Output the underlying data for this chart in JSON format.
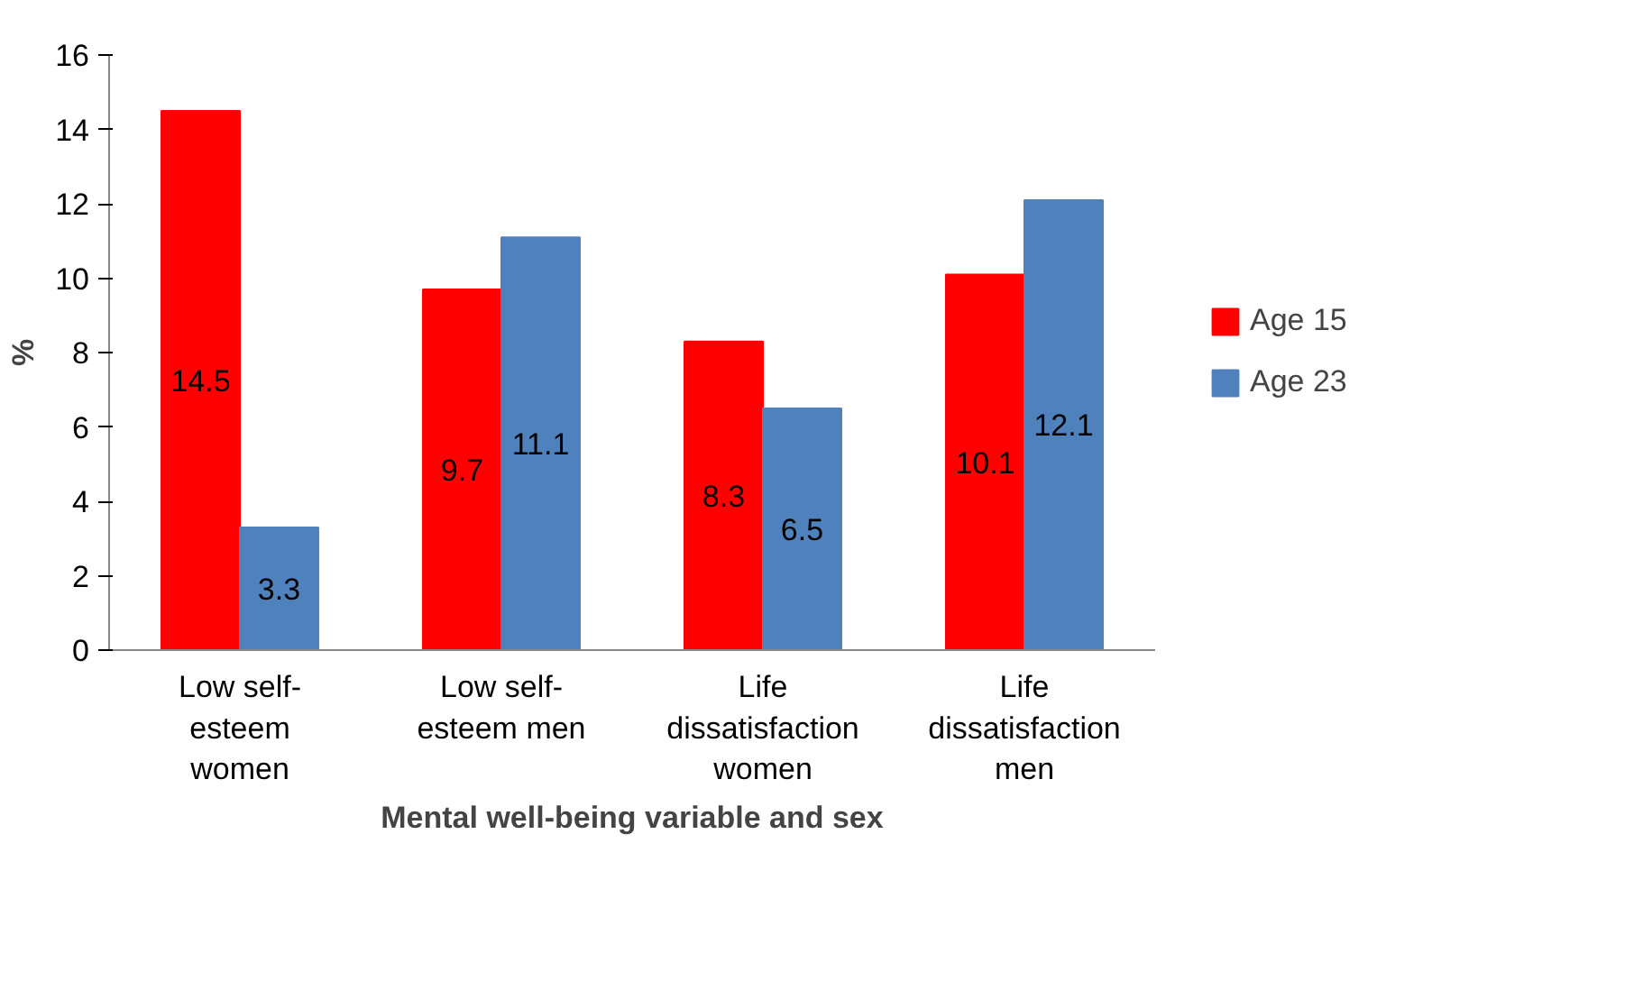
{
  "chart_data": {
    "type": "bar",
    "xlabel": "Mental well-being variable and sex",
    "ylabel": "%",
    "categories": [
      "Low self-esteem women",
      "Low self-esteem men",
      "Life dissatisfaction women",
      "Life dissatisfaction men"
    ],
    "series": [
      {
        "name": "Age 15",
        "color": "#ff0000",
        "values": [
          14.5,
          9.7,
          8.3,
          10.1
        ]
      },
      {
        "name": "Age 23",
        "color": "#4f81bd",
        "values": [
          3.3,
          11.1,
          6.5,
          12.1
        ]
      }
    ],
    "ylim": [
      0,
      16
    ],
    "yticks": [
      0,
      2,
      4,
      6,
      8,
      10,
      12,
      14,
      16
    ],
    "grid": false,
    "legend": "right",
    "data_labels": true
  }
}
